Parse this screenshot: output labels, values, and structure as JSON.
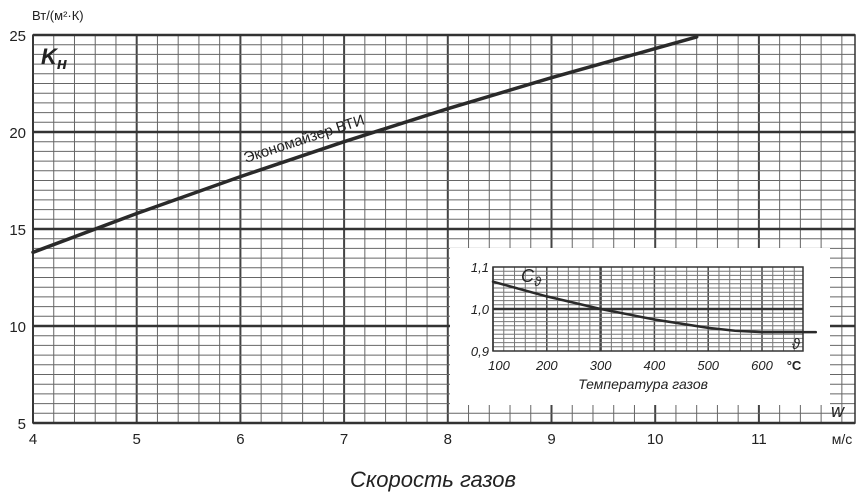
{
  "chart_data": [
    {
      "type": "line",
      "title": "",
      "ylabel": "Вт/(м²·К)",
      "xlabel": "Скорость газов",
      "x_unit": "м/с",
      "x_symbol": "w",
      "y_symbol": "K",
      "y_symbol_sub": "н",
      "xlim": [
        4,
        12
      ],
      "ylim": [
        5,
        25
      ],
      "x_ticks": [
        4,
        5,
        6,
        7,
        8,
        9,
        10,
        11
      ],
      "y_ticks": [
        5,
        10,
        15,
        20,
        25
      ],
      "grid": true,
      "series": [
        {
          "name": "Экономайзер ВТИ",
          "x": [
            4,
            5,
            6,
            7,
            8,
            9,
            10,
            10.4
          ],
          "y": [
            13.8,
            15.8,
            17.7,
            19.5,
            21.2,
            22.8,
            24.3,
            24.9
          ]
        }
      ]
    },
    {
      "type": "line",
      "title": "",
      "xlabel": "Температура газов",
      "x_unit": "°C",
      "x_symbol": "ϑ",
      "y_symbol": "C",
      "y_symbol_sub": "ϑ",
      "xlim": [
        100,
        700
      ],
      "ylim": [
        0.9,
        1.1
      ],
      "x_ticks": [
        100,
        200,
        300,
        400,
        500,
        600
      ],
      "y_ticks": [
        "0,9",
        "1,0",
        "1,1"
      ],
      "y_tick_values": [
        0.9,
        1.0,
        1.1
      ],
      "grid": true,
      "series": [
        {
          "name": "",
          "x": [
            100,
            200,
            300,
            400,
            500,
            550,
            600,
            700
          ],
          "y": [
            1.065,
            1.03,
            1.0,
            0.975,
            0.955,
            0.948,
            0.945,
            0.945
          ]
        }
      ]
    }
  ]
}
